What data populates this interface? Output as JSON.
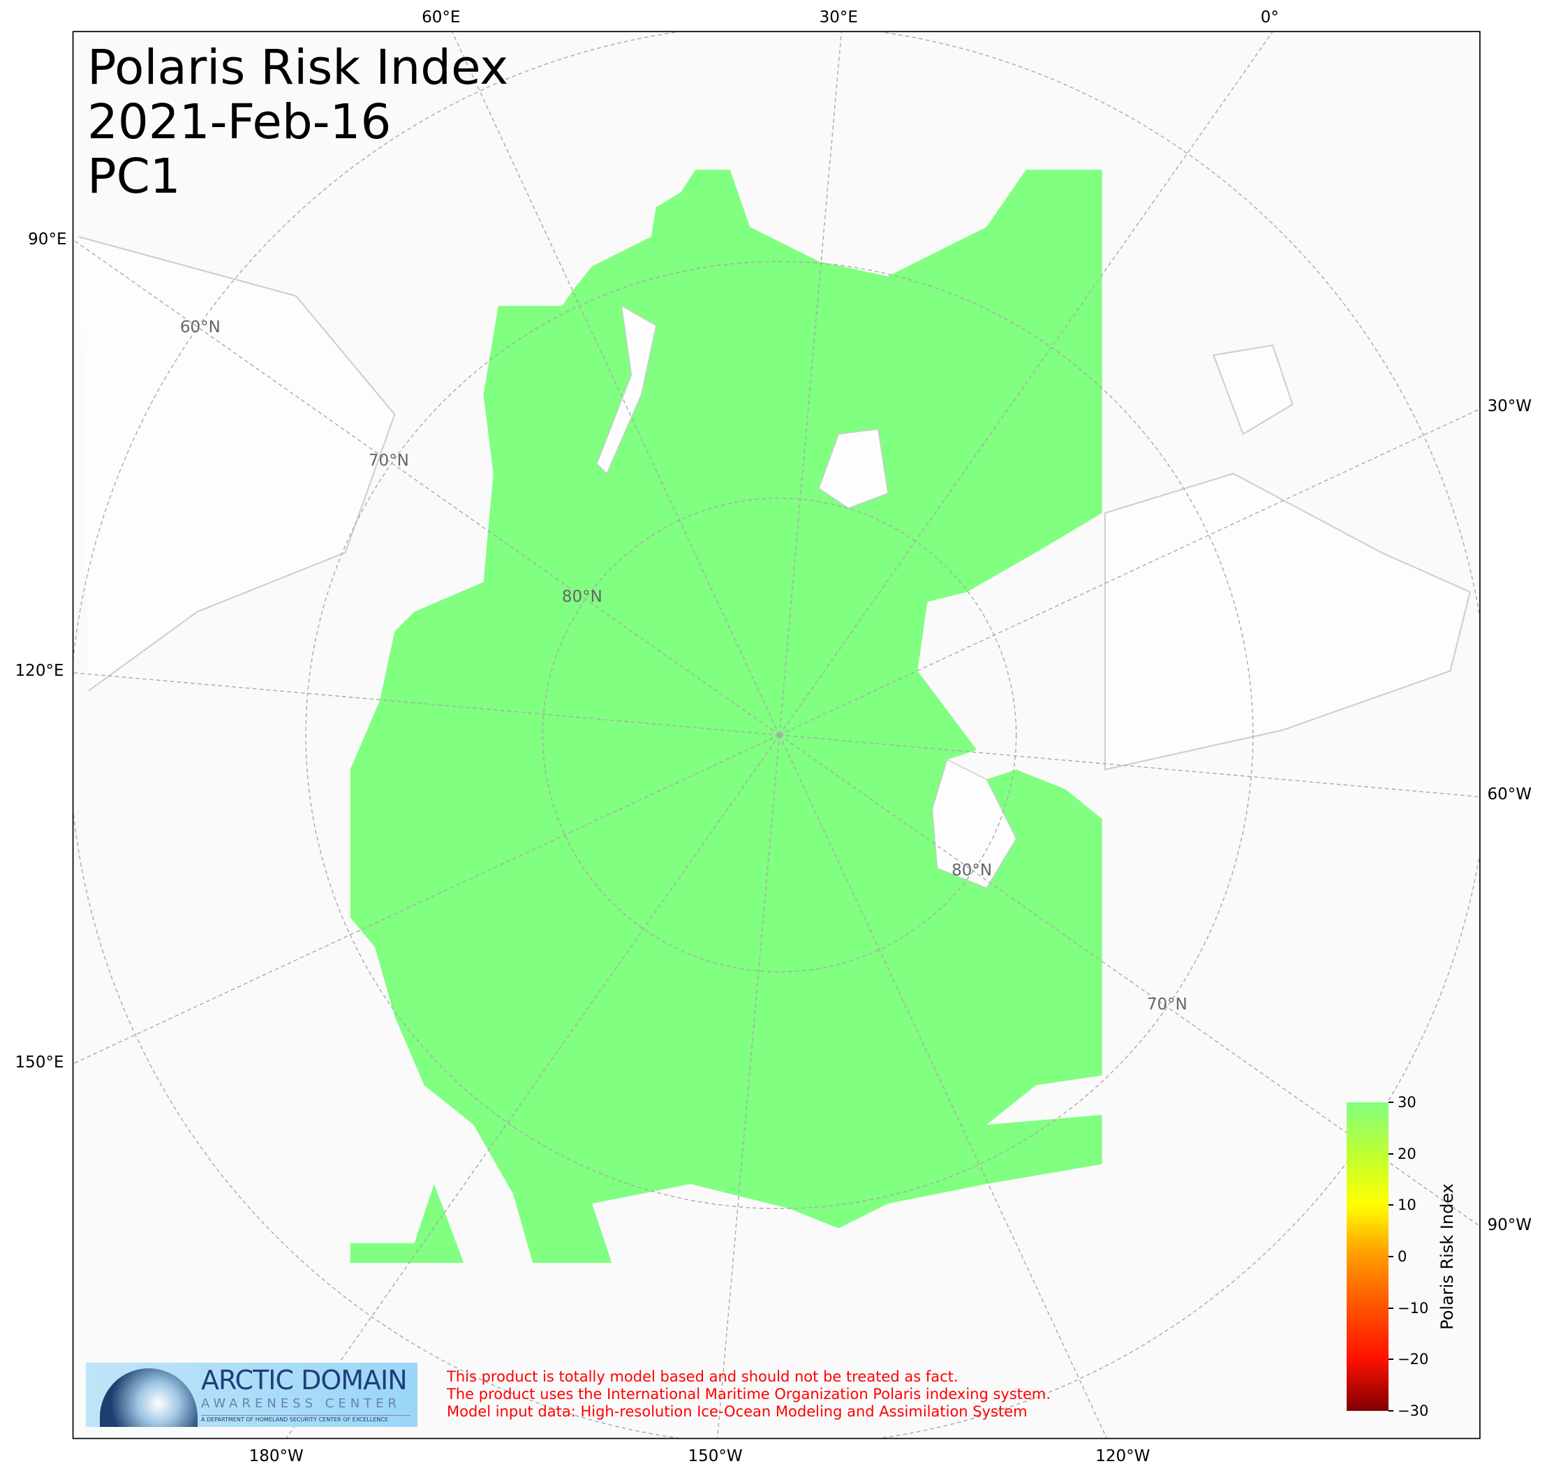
{
  "chart_data": {
    "type": "heatmap",
    "projection": "north-polar-stereographic",
    "title_lines": [
      "Polaris Risk Index",
      "2021-Feb-16",
      "PC1"
    ],
    "field_color": "#80ff80",
    "field_value": 30,
    "colorbar": {
      "label": "Polaris Risk Index",
      "range": [
        -30,
        30
      ],
      "ticks": [
        "30",
        "20",
        "10",
        "0",
        "−10",
        "−20",
        "−30"
      ],
      "colors": [
        "#80ff80",
        "#ffff00",
        "#ff9900",
        "#ff1100",
        "#800000"
      ]
    },
    "meridian_labels": [
      "60°E",
      "30°E",
      "0°",
      "90°E",
      "30°W",
      "120°E",
      "60°W",
      "150°E",
      "90°W",
      "180°W",
      "150°W",
      "120°W"
    ],
    "parallel_labels": [
      "60°N",
      "70°N",
      "80°N",
      "80°N",
      "70°N"
    ],
    "grid": true
  },
  "logo": {
    "line1": "ARCTIC DOMAIN",
    "line2": "AWARENESS CENTER",
    "line3": "A DEPARTMENT OF HOMELAND SECURITY CENTER OF EXCELLENCE"
  },
  "disclaimer": [
    "This product is totally model based and should not be treated as fact.",
    "The product uses the International Maritime Organization Polaris indexing system.",
    "Model input data: High-resolution Ice-Ocean Modeling and Assimilation System"
  ]
}
